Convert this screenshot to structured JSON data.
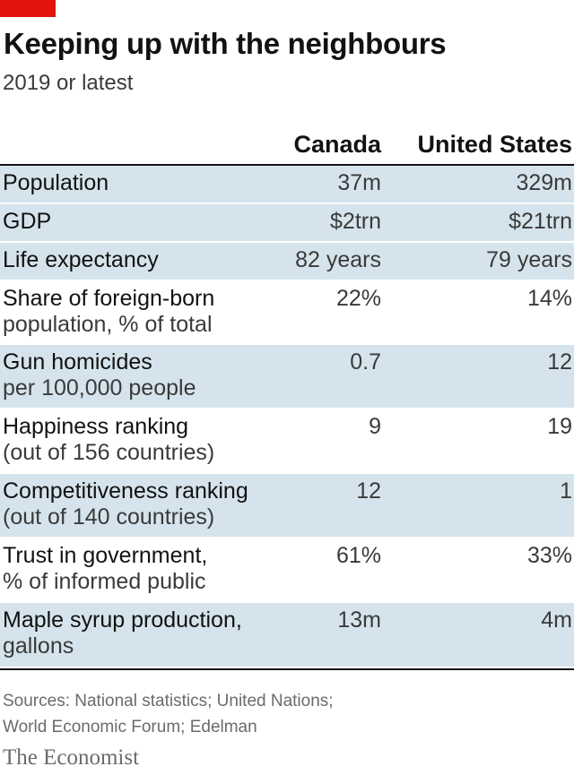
{
  "header": {
    "title": "Keeping up with the neighbours",
    "subtitle": "2019 or latest"
  },
  "columns": [
    "Canada",
    "United States"
  ],
  "rows": [
    {
      "label": "Population",
      "sub": "",
      "canada": "37m",
      "us": "329m",
      "shade": true
    },
    {
      "label": "GDP",
      "sub": "",
      "canada": "$2trn",
      "us": "$21trn",
      "shade": true
    },
    {
      "label": "Life expectancy",
      "sub": "",
      "canada": "82 years",
      "us": "79 years",
      "shade": true
    },
    {
      "label": "Share of foreign-born",
      "sub": "population, % of total",
      "canada": "22%",
      "us": "14%",
      "shade": false
    },
    {
      "label": "Gun homicides",
      "sub": "per 100,000 people",
      "canada": "0.7",
      "us": "12",
      "shade": true
    },
    {
      "label": "Happiness ranking",
      "sub": "(out of 156 countries)",
      "canada": "9",
      "us": "19",
      "shade": false
    },
    {
      "label": "Competitiveness ranking",
      "sub": "(out of 140 countries)",
      "canada": "12",
      "us": "1",
      "shade": true
    },
    {
      "label": "Trust in government,",
      "sub": "% of informed public",
      "canada": "61%",
      "us": "33%",
      "shade": false
    },
    {
      "label": "Maple syrup production,",
      "sub": "gallons",
      "canada": "13m",
      "us": "4m",
      "shade": true
    }
  ],
  "sources": {
    "line1": "Sources: National statistics; United Nations;",
    "line2": "World Economic Forum; Edelman"
  },
  "brand": "The Economist",
  "colors": {
    "accent": "#e3120b",
    "row_shade": "#d5e4ec"
  },
  "chart_data": {
    "type": "table",
    "title": "Keeping up with the neighbours",
    "subtitle": "2019 or latest",
    "columns": [
      "Canada",
      "United States"
    ],
    "rows": [
      {
        "metric": "Population",
        "Canada": "37m",
        "United States": "329m"
      },
      {
        "metric": "GDP",
        "Canada": "$2trn",
        "United States": "$21trn"
      },
      {
        "metric": "Life expectancy",
        "Canada": "82 years",
        "United States": "79 years"
      },
      {
        "metric": "Share of foreign-born population, % of total",
        "Canada": "22%",
        "United States": "14%"
      },
      {
        "metric": "Gun homicides per 100,000 people",
        "Canada": "0.7",
        "United States": "12"
      },
      {
        "metric": "Happiness ranking (out of 156 countries)",
        "Canada": "9",
        "United States": "19"
      },
      {
        "metric": "Competitiveness ranking (out of 140 countries)",
        "Canada": "12",
        "United States": "1"
      },
      {
        "metric": "Trust in government, % of informed public",
        "Canada": "61%",
        "United States": "33%"
      },
      {
        "metric": "Maple syrup production, gallons",
        "Canada": "13m",
        "United States": "4m"
      }
    ]
  }
}
